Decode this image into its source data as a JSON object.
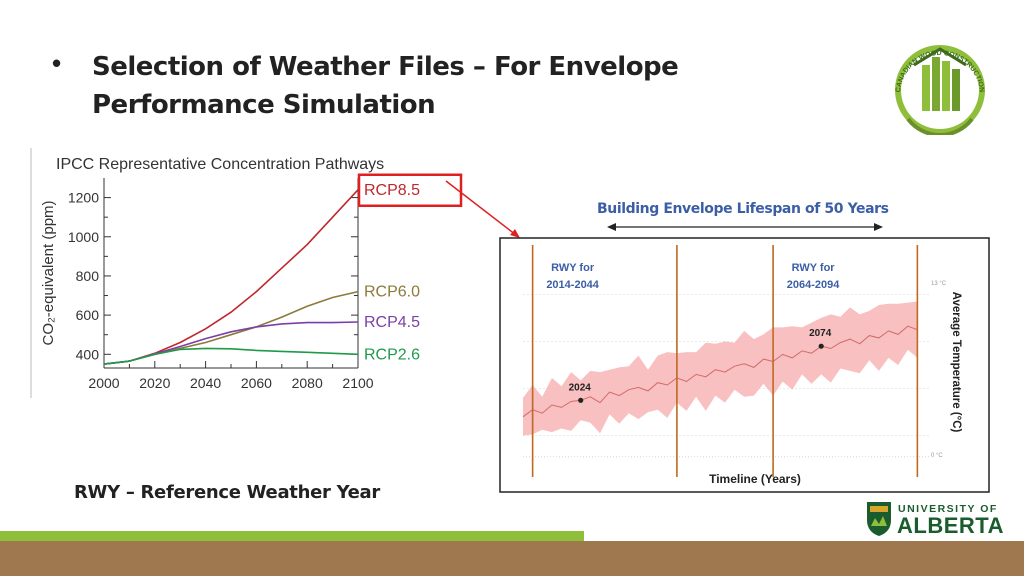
{
  "slide": {
    "bullet": "•",
    "title": "Selection of Weather Files – For Envelope Performance Simulation",
    "footnote": "RWY – Reference Weather Year",
    "lifespan_label": "Building Envelope Lifespan of 50 Years",
    "logo_cwc_text": "CANADIAN WOOD CONSTRUCTION RESEARCH NETWORK",
    "logo_ua_line1": "UNIVERSITY OF",
    "logo_ua_line2": "ALBERTA",
    "colors": {
      "accent_blue": "#3b5ea6",
      "rcp85": "#c0272d",
      "rcp60": "#8c7a3a",
      "rcp45": "#7b3fa6",
      "rcp26": "#1f9a4a",
      "highlight": "#e02020",
      "rwy_line": "#c0681f",
      "band": "#f7b5b5",
      "footer_brown": "#a07850",
      "footer_green": "#8fbf3a",
      "ua_green": "#1a5c2e",
      "ua_gold": "#d7a52b"
    }
  },
  "chart_data": [
    {
      "type": "line",
      "title": "IPCC Representative Concentration Pathways",
      "xlabel": "",
      "ylabel": "CO₂-equivalent (ppm)",
      "xlim": [
        2000,
        2100
      ],
      "ylim": [
        330,
        1300
      ],
      "x_ticks": [
        2000,
        2020,
        2040,
        2060,
        2080,
        2100
      ],
      "y_ticks": [
        400,
        600,
        800,
        1000,
        1200
      ],
      "x": [
        2000,
        2010,
        2020,
        2030,
        2040,
        2050,
        2060,
        2070,
        2080,
        2090,
        2100
      ],
      "series": [
        {
          "name": "RCP8.5",
          "color": "#c0272d",
          "values": [
            350,
            365,
            405,
            460,
            530,
            615,
            720,
            840,
            960,
            1100,
            1240
          ]
        },
        {
          "name": "RCP6.0",
          "color": "#8c7a3a",
          "values": [
            350,
            365,
            400,
            430,
            460,
            500,
            540,
            590,
            645,
            690,
            720
          ]
        },
        {
          "name": "RCP4.5",
          "color": "#7b3fa6",
          "values": [
            350,
            365,
            402,
            440,
            480,
            515,
            540,
            555,
            562,
            562,
            565
          ]
        },
        {
          "name": "RCP2.6",
          "color": "#1f9a4a",
          "values": [
            350,
            365,
            400,
            425,
            430,
            428,
            420,
            415,
            410,
            405,
            400
          ]
        }
      ],
      "legend": "right",
      "highlighted_series": "RCP8.5"
    },
    {
      "type": "area",
      "title": "",
      "xlabel": "Timeline (Years)",
      "ylabel": "Average Temperature (°C)",
      "xlim": [
        2012,
        2096
      ],
      "ylim": [
        -1.5,
        15.5
      ],
      "right_axis_labels": [
        "13 °C",
        "0 °C"
      ],
      "x": [
        2012,
        2014,
        2016,
        2018,
        2020,
        2022,
        2024,
        2026,
        2028,
        2030,
        2032,
        2034,
        2036,
        2038,
        2040,
        2042,
        2044,
        2046,
        2048,
        2050,
        2052,
        2054,
        2056,
        2058,
        2060,
        2062,
        2064,
        2066,
        2068,
        2070,
        2072,
        2074,
        2076,
        2078,
        2080,
        2082,
        2084,
        2086,
        2088,
        2090,
        2092,
        2094
      ],
      "mean": [
        2.6,
        3.2,
        2.9,
        3.6,
        3.4,
        3.9,
        4.0,
        4.3,
        3.8,
        4.7,
        4.4,
        4.9,
        5.1,
        4.8,
        5.5,
        5.3,
        5.9,
        5.6,
        6.2,
        6.0,
        6.6,
        6.4,
        6.9,
        7.1,
        6.8,
        7.5,
        7.3,
        7.9,
        7.6,
        8.2,
        8.0,
        8.6,
        8.4,
        8.9,
        9.2,
        8.8,
        9.5,
        9.3,
        9.9,
        9.6,
        10.3,
        10.0
      ],
      "band_half_width": [
        1.6,
        2.1,
        1.4,
        2.3,
        1.8,
        2.5,
        1.7,
        2.2,
        2.6,
        1.9,
        2.4,
        2.0,
        2.7,
        1.8,
        2.3,
        2.8,
        2.1,
        2.5,
        1.9,
        2.9,
        2.2,
        2.6,
        2.0,
        2.8,
        2.4,
        2.1,
        2.9,
        2.3,
        2.7,
        2.0,
        2.6,
        2.4,
        2.9,
        2.2,
        2.7,
        2.5,
        2.1,
        2.8,
        2.3,
        2.6,
        2.0,
        2.4
      ],
      "markers": [
        {
          "label": "2024",
          "year": 2024,
          "value": 4.0
        },
        {
          "label": "2074",
          "year": 2074,
          "value": 8.6
        }
      ],
      "rwy_windows": [
        {
          "label": "RWY for 2014-2044",
          "line1": "RWY for",
          "line2": "2014-2044",
          "start": 2014,
          "end": 2044
        },
        {
          "label": "RWY for 2064-2094",
          "line1": "RWY for",
          "line2": "2064-2094",
          "start": 2064,
          "end": 2094
        }
      ]
    }
  ]
}
